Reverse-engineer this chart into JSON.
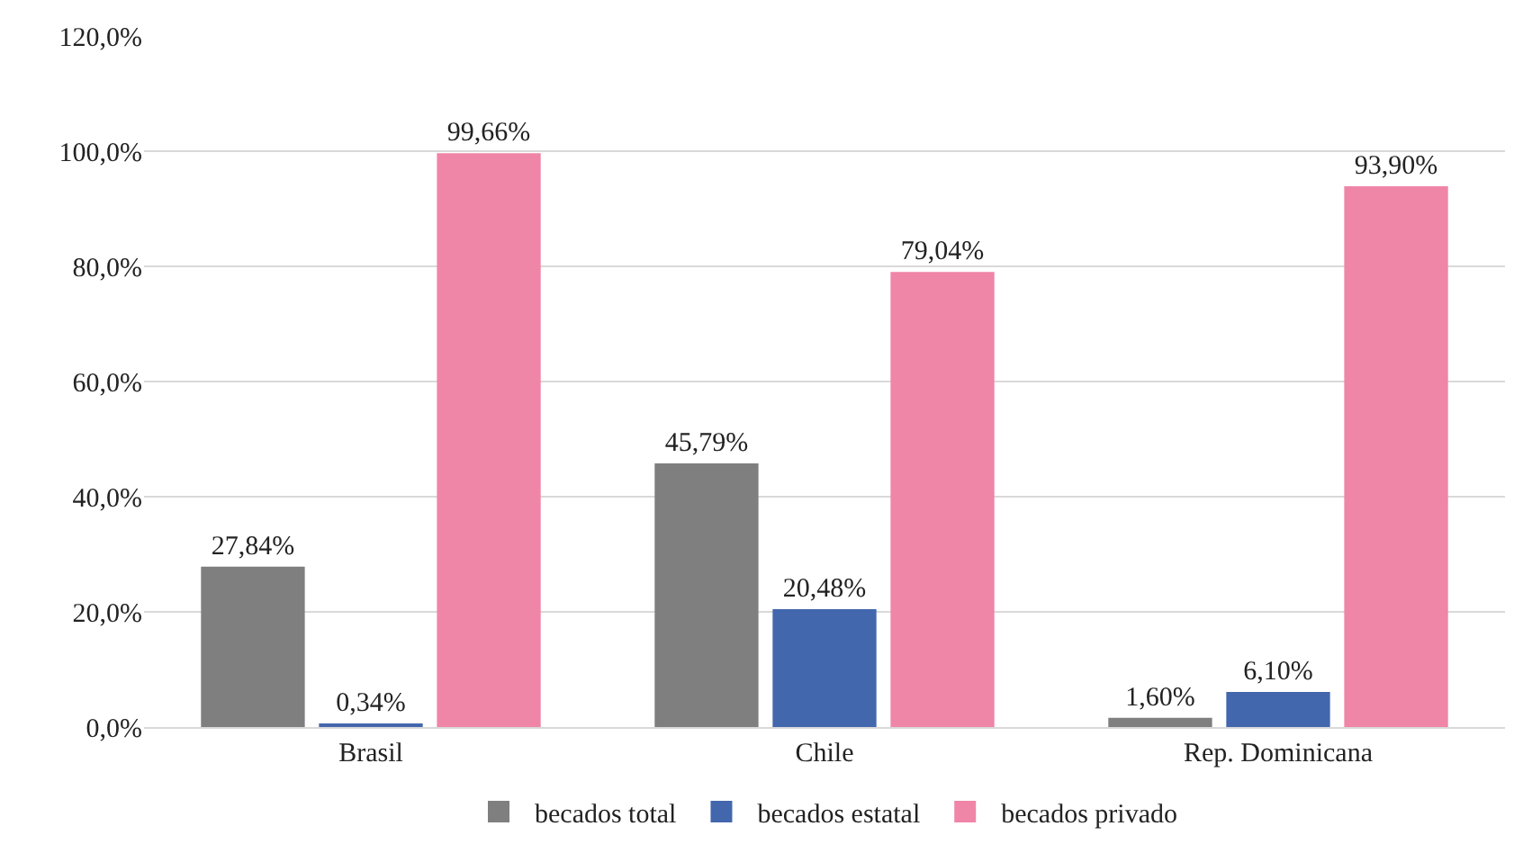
{
  "chart_data": {
    "type": "bar",
    "categories": [
      "Brasil",
      "Chile",
      "Rep. Dominicana"
    ],
    "series": [
      {
        "name": "becados total",
        "color": "#7f7f7f",
        "values": [
          27.84,
          45.79,
          1.6
        ],
        "value_labels": [
          "27,84%",
          "45,79%",
          "1,60%"
        ]
      },
      {
        "name": "becados estatal",
        "color": "#4367ad",
        "values": [
          0.34,
          20.48,
          6.1
        ],
        "value_labels": [
          "0,34%",
          "20,48%",
          "6,10%"
        ]
      },
      {
        "name": "becados privado",
        "color": "#ef85a7",
        "values": [
          99.66,
          79.04,
          93.9
        ],
        "value_labels": [
          "99,66%",
          "79,04%",
          "93,90%"
        ]
      }
    ],
    "ylim": [
      0,
      120
    ],
    "yticks": [
      {
        "value": 0,
        "label": "0,0%"
      },
      {
        "value": 20,
        "label": "20,0%"
      },
      {
        "value": 40,
        "label": "40,0%"
      },
      {
        "value": 60,
        "label": "60,0%"
      },
      {
        "value": 80,
        "label": "80,0%"
      },
      {
        "value": 100,
        "label": "100,0%"
      },
      {
        "value": 120,
        "label": "120,0%"
      }
    ],
    "grid": "y",
    "legend": "bottom"
  }
}
